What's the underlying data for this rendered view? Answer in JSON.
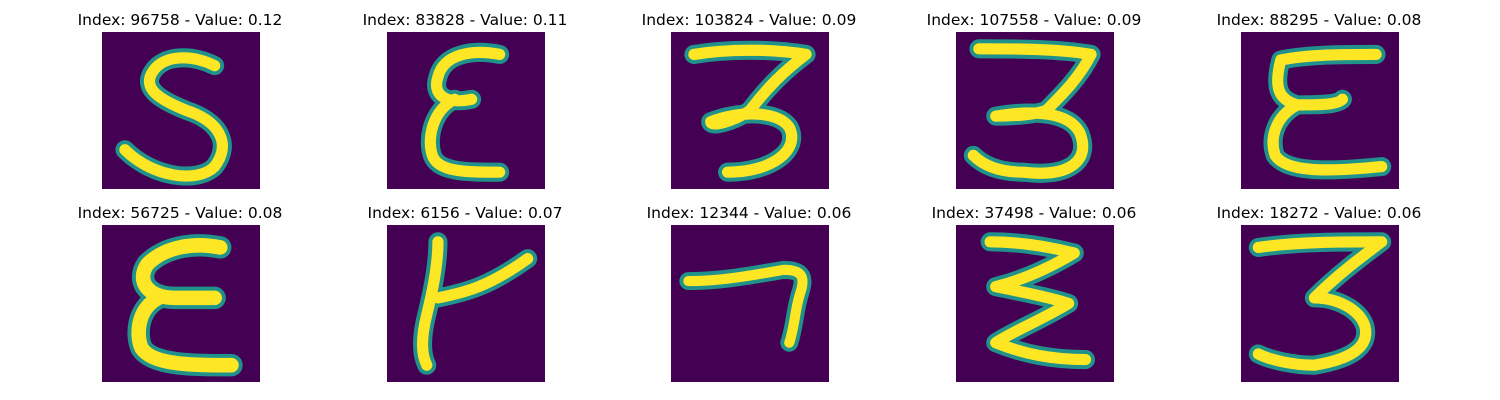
{
  "figure": {
    "panels": [
      {
        "title": "Index: 96758 - Value: 0.12",
        "glyph": "five"
      },
      {
        "title": "Index: 83828 - Value: 0.11",
        "glyph": "epsilon"
      },
      {
        "title": "Index: 103824 - Value: 0.09",
        "glyph": "three"
      },
      {
        "title": "Index: 107558 - Value: 0.09",
        "glyph": "three-flat"
      },
      {
        "title": "Index: 88295 - Value: 0.08",
        "glyph": "epsilon-wide"
      },
      {
        "title": "Index: 56725 - Value: 0.08",
        "glyph": "epsilon-bold"
      },
      {
        "title": "Index: 6156 - Value: 0.07",
        "glyph": "hook"
      },
      {
        "title": "Index: 12344 - Value: 0.06",
        "glyph": "seven"
      },
      {
        "title": "Index: 37498 - Value: 0.06",
        "glyph": "zigzag"
      },
      {
        "title": "Index: 18272 - Value: 0.06",
        "glyph": "three-wide"
      }
    ],
    "colors": {
      "background": "#440154",
      "stroke_edge": "#21918c",
      "stroke_core": "#fde725"
    }
  }
}
